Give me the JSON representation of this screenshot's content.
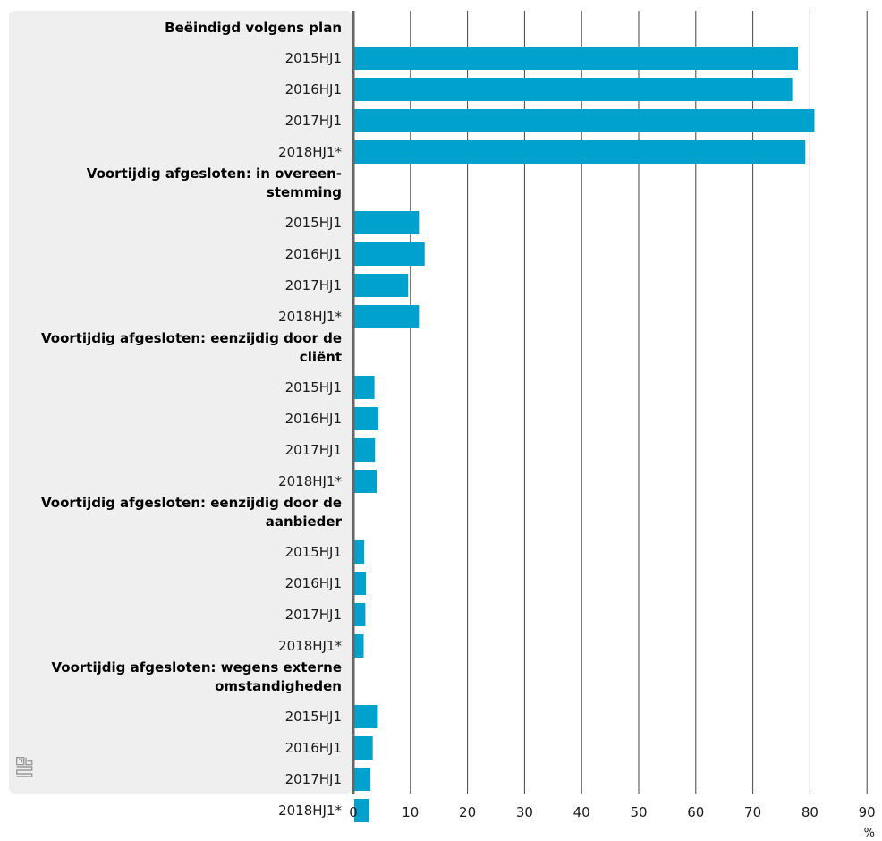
{
  "chart_data": {
    "type": "bar",
    "orientation": "horizontal",
    "unit": "%",
    "xlim": [
      0,
      90
    ],
    "ticks": [
      0,
      10,
      20,
      30,
      40,
      50,
      60,
      70,
      80,
      90
    ],
    "grid": true,
    "groups": [
      {
        "label_lines": [
          "Beëindigd volgens plan"
        ],
        "categories": [
          "2015HJ1",
          "2016HJ1",
          "2017HJ1",
          "2018HJ1*"
        ],
        "values": [
          77.9,
          76.9,
          80.8,
          79.2
        ]
      },
      {
        "label_lines": [
          "Voortijdig afgesloten: in overeen-",
          "stemming"
        ],
        "categories": [
          "2015HJ1",
          "2016HJ1",
          "2017HJ1",
          "2018HJ1*"
        ],
        "values": [
          11.5,
          12.5,
          9.6,
          11.5
        ]
      },
      {
        "label_lines": [
          "Voortijdig afgesloten: eenzijdig door de",
          "cliënt"
        ],
        "categories": [
          "2015HJ1",
          "2016HJ1",
          "2017HJ1",
          "2018HJ1*"
        ],
        "values": [
          3.7,
          4.4,
          3.8,
          4.1
        ]
      },
      {
        "label_lines": [
          "Voortijdig afgesloten: eenzijdig door de",
          "aanbieder"
        ],
        "categories": [
          "2015HJ1",
          "2016HJ1",
          "2017HJ1",
          "2018HJ1*"
        ],
        "values": [
          1.9,
          2.2,
          2.1,
          1.8
        ]
      },
      {
        "label_lines": [
          "Voortijdig afgesloten: wegens externe",
          "omstandigheden"
        ],
        "categories": [
          "2015HJ1",
          "2016HJ1",
          "2017HJ1",
          "2018HJ1*"
        ],
        "values": [
          4.3,
          3.4,
          3.0,
          2.7
        ]
      }
    ]
  },
  "colors": {
    "bar": "#00a1cd",
    "panel": "#efefef",
    "axis": "#666666",
    "grid": "#444444"
  },
  "logo_icon": "cbs-logo-icon"
}
